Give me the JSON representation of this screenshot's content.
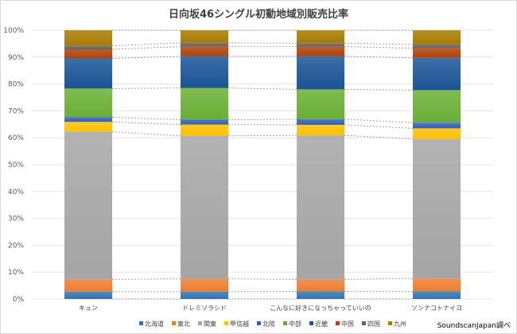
{
  "chart_data": {
    "type": "stacked-bar-100",
    "title": "日向坂46シングル初動地域別販売比率",
    "categories": [
      "キュン",
      "ドレミソラシド",
      "こんなに好きになっちゃっていいの",
      "ソンナコトナイヨ"
    ],
    "ylim": [
      0,
      100
    ],
    "yticks": [
      "0%",
      "10%",
      "20%",
      "30%",
      "40%",
      "50%",
      "60%",
      "70%",
      "80%",
      "90%",
      "100%"
    ],
    "grid": true,
    "legend_position": "bottom",
    "series_lines": true,
    "series": [
      {
        "name": "北海道",
        "color": "#2e75b6",
        "values": [
          2.7,
          2.7,
          2.8,
          2.8
        ]
      },
      {
        "name": "東北",
        "color": "#ed7d31",
        "values": [
          4.6,
          4.8,
          4.5,
          4.8
        ]
      },
      {
        "name": "関東",
        "color": "#a5a5a5",
        "values": [
          54.9,
          53.2,
          53.6,
          51.9
        ]
      },
      {
        "name": "甲信越",
        "color": "#ffc000",
        "values": [
          3.7,
          4.2,
          3.9,
          4.0
        ]
      },
      {
        "name": "北陸",
        "color": "#2f5fc0",
        "values": [
          1.7,
          1.8,
          2.1,
          2.1
        ]
      },
      {
        "name": "中部",
        "color": "#6aaf35",
        "values": [
          10.7,
          11.8,
          11.1,
          12.1
        ]
      },
      {
        "name": "近畿",
        "color": "#1a5496",
        "values": [
          11.2,
          11.8,
          12.3,
          12.0
        ]
      },
      {
        "name": "中国",
        "color": "#b0410a",
        "values": [
          3.4,
          3.6,
          3.6,
          3.6
        ]
      },
      {
        "name": "四国",
        "color": "#636363",
        "values": [
          1.3,
          1.4,
          1.3,
          1.4
        ]
      },
      {
        "name": "九州",
        "color": "#a87b00",
        "values": [
          5.8,
          4.7,
          4.8,
          5.3
        ]
      }
    ]
  },
  "credit": "SoundscanJapan調べ"
}
